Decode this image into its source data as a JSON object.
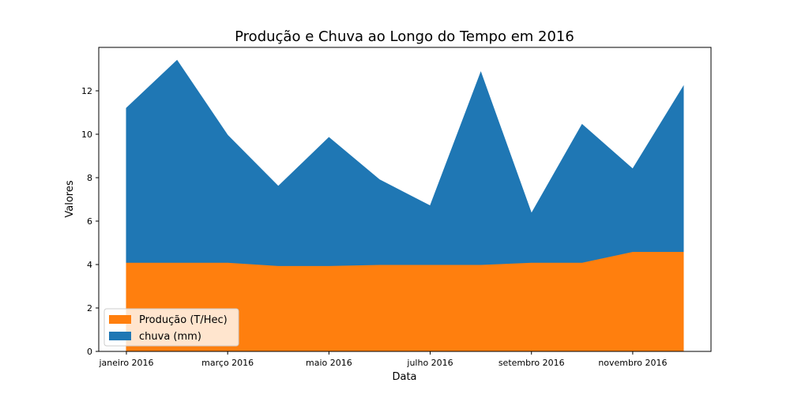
{
  "chart_data": {
    "type": "area",
    "stacked": true,
    "title": "Produção e Chuva ao Longo do Tempo em 2016",
    "xlabel": "Data",
    "ylabel": "Valores",
    "x": [
      "2016-01",
      "2016-02",
      "2016-03",
      "2016-04",
      "2016-05",
      "2016-06",
      "2016-07",
      "2016-08",
      "2016-09",
      "2016-10",
      "2016-11",
      "2016-12"
    ],
    "x_tick_labels": [
      "janeiro 2016",
      "março 2016",
      "maio 2016",
      "julho 2016",
      "setembro 2016",
      "novembro 2016"
    ],
    "x_ticks": [
      "2016-01",
      "2016-03",
      "2016-05",
      "2016-07",
      "2016-09",
      "2016-11"
    ],
    "ylim": [
      0,
      14
    ],
    "y_ticks": [
      0,
      2,
      4,
      6,
      8,
      10,
      12
    ],
    "grid": false,
    "legend_position": "lower-left",
    "series": [
      {
        "name": "Produção (T/Hec)",
        "color": "#ff7f0e",
        "values": [
          4.1,
          4.1,
          4.1,
          3.95,
          3.95,
          4.0,
          4.0,
          4.0,
          4.1,
          4.1,
          4.6,
          4.6
        ]
      },
      {
        "name": "chuva (mm)",
        "color": "#1f77b4",
        "values": [
          7.1,
          9.3,
          5.85,
          3.65,
          5.9,
          3.9,
          2.7,
          8.85,
          2.25,
          6.35,
          3.8,
          7.6
        ]
      }
    ]
  }
}
